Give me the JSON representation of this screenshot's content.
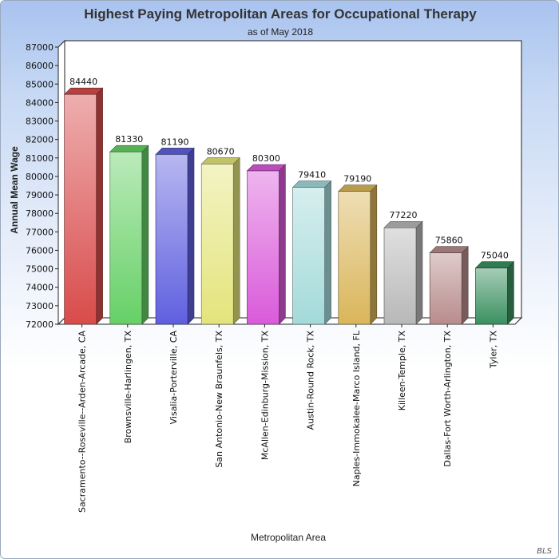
{
  "chart_data": {
    "type": "bar",
    "title": "Highest Paying Metropolitan Areas for Occupational Therapy",
    "subtitle": "as of May 2018",
    "xlabel": "Metropolitan Area",
    "ylabel": "Annual Mean Wage",
    "ylim": [
      72000,
      87000
    ],
    "yticks": [
      72000,
      73000,
      74000,
      75000,
      76000,
      77000,
      78000,
      79000,
      80000,
      81000,
      82000,
      83000,
      84000,
      85000,
      86000,
      87000
    ],
    "categories": [
      "Sacramento--Roseville--Arden-Arcade, CA",
      "Brownsville-Harlingen, TX",
      "Visalia-Porterville, CA",
      "San Antonio-New Braunfels, TX",
      "McAllen-Edinburg-Mission, TX",
      "Austin-Round Rock, TX",
      "Naples-Immokalee-Marco Island, FL",
      "Killeen-Temple, TX",
      "Dallas-Fort Worth-Arlington, TX",
      "Tyler, TX"
    ],
    "values": [
      84440,
      81330,
      81190,
      80670,
      80300,
      79410,
      79190,
      77220,
      75860,
      75040
    ],
    "data_labels": [
      "84440",
      "81330",
      "81190",
      "80670",
      "80300",
      "79410",
      "79190",
      "77220",
      "75860",
      "75040"
    ],
    "colors": [
      "#d94b4b",
      "#66d066",
      "#6060e0",
      "#e4e47c",
      "#da5ada",
      "#a4dada",
      "#dab65a",
      "#b8b8b8",
      "#b88c8c",
      "#3a9060"
    ],
    "grid": false,
    "legend": "none",
    "source": "BLS"
  }
}
